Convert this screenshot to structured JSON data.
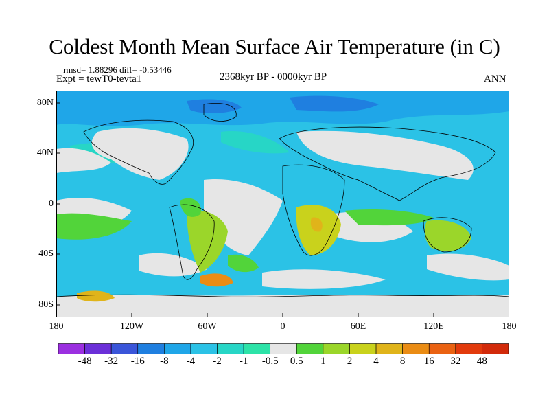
{
  "title": "Coldest Month Mean Surface Air Temperature (in C)",
  "stats": "rmsd= 1.88296 diff= -0.53446",
  "experiment": "Expt = tewT0-tevta1",
  "period": "2368kyr BP - 0000kyr BP",
  "season": "ANN",
  "y_ticks": [
    "80N",
    "40N",
    "0",
    "40S",
    "80S"
  ],
  "x_ticks": [
    "180",
    "120W",
    "60W",
    "0",
    "60E",
    "120E",
    "180"
  ],
  "colorbar": {
    "labels": [
      "-48",
      "-32",
      "-16",
      "-8",
      "-4",
      "-2",
      "-1",
      "-0.5",
      "0.5",
      "1",
      "2",
      "4",
      "8",
      "16",
      "32",
      "48"
    ],
    "colors": [
      "#9b2fe0",
      "#6b2fd8",
      "#3a55d9",
      "#1f7fe0",
      "#1fa6e8",
      "#2bc2e6",
      "#27d6c6",
      "#2de3a8",
      "#e6e6e6",
      "#52d43a",
      "#9bd62a",
      "#c9d21c",
      "#e0b41a",
      "#ea8c14",
      "#ea6212",
      "#e23a0c",
      "#d22a0a"
    ]
  },
  "map_colors": {
    "deep_blue": "#1f7fe0",
    "mid_blue": "#1fa6e8",
    "light_blue": "#2bc2e6",
    "cyan": "#27d6c6",
    "neutral": "#e6e6e6",
    "green": "#52d43a",
    "yellow_green": "#9bd62a",
    "olive": "#c9d21c",
    "orange": "#ea8c14"
  }
}
